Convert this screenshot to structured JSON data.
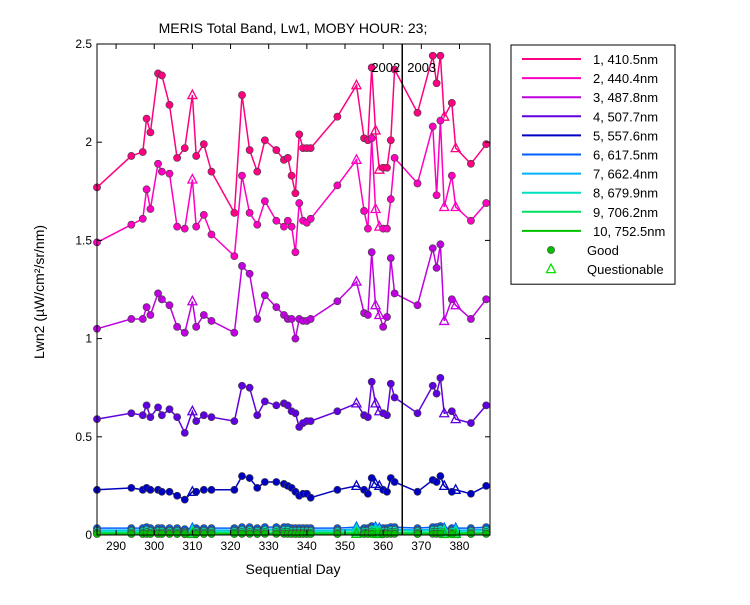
{
  "chart_data": {
    "type": "line",
    "title": "MERIS Total Band, Lw1, MOBY HOUR: 23;",
    "xlabel": "Sequential Day",
    "ylabel": "Lwn2 (µW/cm²/sr/nm)",
    "xlim": [
      285,
      388
    ],
    "ylim": [
      0,
      2.5
    ],
    "xticks": [
      "290",
      "300",
      "310",
      "320",
      "330",
      "340",
      "350",
      "360",
      "370",
      "380"
    ],
    "yticks": [
      "0",
      "0.5",
      "1",
      "1.5",
      "2",
      "2.5"
    ],
    "year_divider": 365,
    "year_labels": [
      "2002",
      "2003"
    ],
    "grid": false,
    "legend_position": "outside-right",
    "x": [
      285,
      294,
      297,
      298,
      299,
      301,
      302,
      304,
      306,
      308,
      310,
      311,
      313,
      315,
      321,
      323,
      325,
      327,
      329,
      332,
      334,
      335,
      336,
      337,
      338,
      339,
      340,
      341,
      348,
      353,
      355,
      356,
      357,
      358,
      359,
      360,
      361,
      362,
      363,
      369,
      373,
      374,
      375,
      376,
      378,
      379,
      383,
      387
    ],
    "series": [
      {
        "name": "1, 410.5nm",
        "color": "#ff0080",
        "values": [
          1.77,
          1.93,
          1.95,
          2.12,
          2.05,
          2.35,
          2.34,
          2.19,
          1.92,
          1.97,
          2.24,
          1.93,
          1.99,
          1.85,
          1.64,
          2.24,
          1.96,
          1.85,
          2.01,
          1.96,
          1.91,
          1.92,
          1.83,
          1.74,
          2.04,
          1.97,
          1.97,
          1.97,
          2.13,
          2.29,
          2.02,
          2.01,
          2.38,
          2.06,
          1.86,
          1.87,
          1.87,
          2.01,
          2.37,
          2.15,
          2.44,
          2.3,
          2.44,
          2.13,
          2.2,
          1.97,
          1.89,
          1.99
        ]
      },
      {
        "name": "2, 440.4nm",
        "color": "#ff00c0",
        "values": [
          1.49,
          1.58,
          1.61,
          1.76,
          1.66,
          1.89,
          1.85,
          1.84,
          1.57,
          1.56,
          1.81,
          1.57,
          1.63,
          1.53,
          1.42,
          1.83,
          1.64,
          1.58,
          1.7,
          1.6,
          1.57,
          1.6,
          1.57,
          1.44,
          1.69,
          1.6,
          1.59,
          1.61,
          1.78,
          1.91,
          1.65,
          1.56,
          2.02,
          1.66,
          1.57,
          1.56,
          1.56,
          1.71,
          1.92,
          1.79,
          2.08,
          1.73,
          2.11,
          1.67,
          1.83,
          1.67,
          1.6,
          1.69
        ]
      },
      {
        "name": "3, 487.8nm",
        "color": "#c000e0",
        "values": [
          1.05,
          1.1,
          1.1,
          1.16,
          1.12,
          1.23,
          1.2,
          1.17,
          1.06,
          1.03,
          1.19,
          1.06,
          1.12,
          1.09,
          1.03,
          1.37,
          1.33,
          1.1,
          1.22,
          1.16,
          1.12,
          1.1,
          1.1,
          1.0,
          1.1,
          1.09,
          1.09,
          1.1,
          1.19,
          1.29,
          1.13,
          1.12,
          1.44,
          1.17,
          1.12,
          1.06,
          1.11,
          1.41,
          1.23,
          1.17,
          1.46,
          1.36,
          1.48,
          1.09,
          1.2,
          1.17,
          1.1,
          1.2
        ]
      },
      {
        "name": "4, 507.7nm",
        "color": "#6000e0",
        "values": [
          0.59,
          0.62,
          0.61,
          0.66,
          0.6,
          0.65,
          0.61,
          0.64,
          0.6,
          0.52,
          0.63,
          0.58,
          0.61,
          0.6,
          0.58,
          0.76,
          0.75,
          0.61,
          0.68,
          0.66,
          0.67,
          0.66,
          0.63,
          0.62,
          0.55,
          0.57,
          0.58,
          0.58,
          0.63,
          0.67,
          0.61,
          0.6,
          0.78,
          0.67,
          0.63,
          0.62,
          0.61,
          0.77,
          0.7,
          0.62,
          0.76,
          0.72,
          0.8,
          0.62,
          0.63,
          0.59,
          0.57,
          0.66
        ]
      },
      {
        "name": "5, 557.6nm",
        "color": "#0000c0",
        "values": [
          0.23,
          0.24,
          0.23,
          0.24,
          0.23,
          0.23,
          0.22,
          0.22,
          0.2,
          0.18,
          0.22,
          0.22,
          0.23,
          0.23,
          0.23,
          0.3,
          0.29,
          0.24,
          0.27,
          0.27,
          0.26,
          0.25,
          0.24,
          0.22,
          0.2,
          0.21,
          0.21,
          0.19,
          0.23,
          0.25,
          0.23,
          0.21,
          0.29,
          0.26,
          0.25,
          0.23,
          0.22,
          0.29,
          0.27,
          0.22,
          0.28,
          0.27,
          0.3,
          0.25,
          0.22,
          0.23,
          0.21,
          0.25
        ]
      },
      {
        "name": "6, 617.5nm",
        "color": "#0060ff",
        "values": [
          0.035,
          0.035,
          0.035,
          0.04,
          0.035,
          0.035,
          0.035,
          0.035,
          0.035,
          0.03,
          0.035,
          0.035,
          0.035,
          0.035,
          0.035,
          0.04,
          0.04,
          0.035,
          0.04,
          0.04,
          0.04,
          0.04,
          0.035,
          0.035,
          0.035,
          0.035,
          0.035,
          0.035,
          0.035,
          0.04,
          0.035,
          0.035,
          0.045,
          0.04,
          0.035,
          0.035,
          0.035,
          0.04,
          0.04,
          0.035,
          0.04,
          0.04,
          0.045,
          0.035,
          0.035,
          0.035,
          0.035,
          0.04
        ]
      },
      {
        "name": "7, 662.4nm",
        "color": "#00b0ff",
        "values": [
          0.025,
          0.025,
          0.025,
          0.03,
          0.025,
          0.025,
          0.025,
          0.025,
          0.025,
          0.02,
          0.025,
          0.025,
          0.025,
          0.025,
          0.025,
          0.03,
          0.03,
          0.025,
          0.03,
          0.03,
          0.03,
          0.03,
          0.025,
          0.025,
          0.025,
          0.025,
          0.025,
          0.025,
          0.025,
          0.03,
          0.025,
          0.025,
          0.035,
          0.03,
          0.025,
          0.025,
          0.025,
          0.03,
          0.03,
          0.025,
          0.03,
          0.03,
          0.035,
          0.025,
          0.025,
          0.025,
          0.025,
          0.03
        ]
      },
      {
        "name": "8, 679.9nm",
        "color": "#00e0c0",
        "values": [
          0.02,
          0.02,
          0.02,
          0.025,
          0.02,
          0.02,
          0.02,
          0.02,
          0.02,
          0.015,
          0.02,
          0.02,
          0.02,
          0.02,
          0.02,
          0.025,
          0.025,
          0.02,
          0.025,
          0.025,
          0.025,
          0.025,
          0.02,
          0.02,
          0.02,
          0.02,
          0.02,
          0.02,
          0.02,
          0.025,
          0.02,
          0.02,
          0.03,
          0.025,
          0.02,
          0.02,
          0.02,
          0.025,
          0.025,
          0.02,
          0.025,
          0.025,
          0.03,
          0.02,
          0.02,
          0.02,
          0.02,
          0.025
        ]
      },
      {
        "name": "9, 706.2nm",
        "color": "#00e060",
        "values": [
          0.012,
          0.012,
          0.012,
          0.015,
          0.012,
          0.012,
          0.012,
          0.012,
          0.012,
          0.01,
          0.012,
          0.012,
          0.012,
          0.012,
          0.012,
          0.015,
          0.015,
          0.012,
          0.015,
          0.015,
          0.015,
          0.015,
          0.012,
          0.012,
          0.012,
          0.012,
          0.012,
          0.012,
          0.012,
          0.015,
          0.012,
          0.012,
          0.018,
          0.015,
          0.012,
          0.012,
          0.012,
          0.015,
          0.015,
          0.012,
          0.015,
          0.015,
          0.018,
          0.012,
          0.012,
          0.012,
          0.012,
          0.015
        ]
      },
      {
        "name": "10, 752.5nm",
        "color": "#00c000",
        "values": [
          0.005,
          0.005,
          0.005,
          0.006,
          0.005,
          0.005,
          0.005,
          0.005,
          0.005,
          0.004,
          0.005,
          0.005,
          0.005,
          0.005,
          0.005,
          0.006,
          0.006,
          0.005,
          0.006,
          0.006,
          0.006,
          0.006,
          0.005,
          0.005,
          0.005,
          0.005,
          0.005,
          0.005,
          0.005,
          0.006,
          0.005,
          0.005,
          0.007,
          0.006,
          0.005,
          0.005,
          0.005,
          0.006,
          0.006,
          0.005,
          0.006,
          0.006,
          0.007,
          0.005,
          0.005,
          0.005,
          0.005,
          0.006
        ]
      }
    ],
    "questionable_x": [
      310,
      353,
      358,
      359,
      376,
      379
    ],
    "legend_markers": [
      {
        "label": "Good",
        "marker": "circle",
        "color": "#00c000"
      },
      {
        "label": "Questionable",
        "marker": "triangle",
        "color": "#00e000"
      }
    ]
  }
}
